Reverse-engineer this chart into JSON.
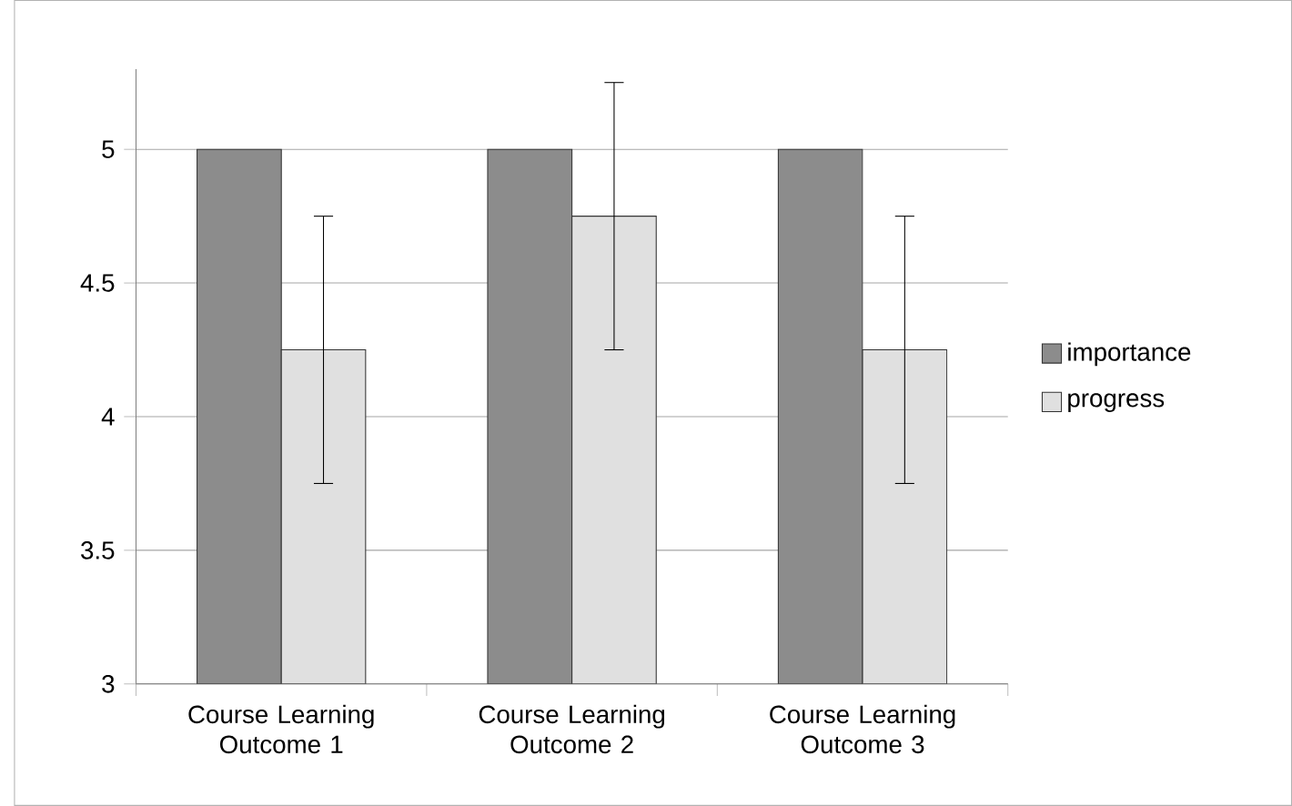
{
  "chart_data": {
    "type": "bar",
    "categories": [
      "Course Learning Outcome 1",
      "Course Learning Outcome 2",
      "Course Learning Outcome 3"
    ],
    "series": [
      {
        "name": "importance",
        "color": "#8c8c8c",
        "values": [
          5,
          5,
          5
        ]
      },
      {
        "name": "progress",
        "color": "#e0e0e0",
        "values": [
          4.25,
          4.75,
          4.25
        ],
        "errors": [
          0.5,
          0.5,
          0.5
        ]
      }
    ],
    "ylim": [
      3,
      5.3
    ],
    "yticks": [
      3,
      3.5,
      4,
      4.5,
      5
    ],
    "grid": "y",
    "legend": "right"
  }
}
